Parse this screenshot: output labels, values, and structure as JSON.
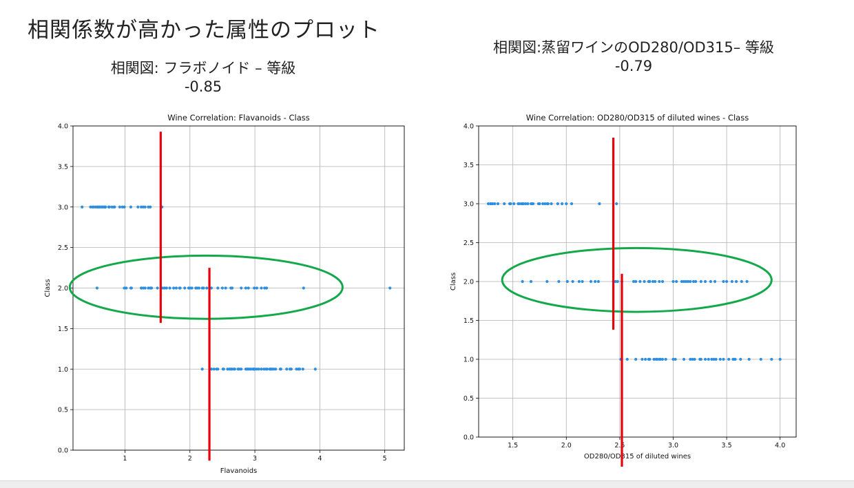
{
  "slide": {
    "title": "相関係数が高かった属性のプロット"
  },
  "captions": [
    {
      "title": "相関図: フラボノイド – 等級",
      "value": "-0.85"
    },
    {
      "title": "相関図:蒸留ワインのOD280/OD315– 等級",
      "value": "-0.79"
    }
  ],
  "colors": {
    "points": "#2e8fe0",
    "grid": "#b0b0b0",
    "marker_lines": "#e8000b",
    "ellipse": "#13a84a"
  },
  "chart_data": [
    {
      "type": "scatter",
      "title": "Wine Correlation: Flavanoids - Class",
      "xlabel": "Flavanoids",
      "ylabel": "Class",
      "xlim": [
        0.2,
        5.3
      ],
      "ylim": [
        0.0,
        4.0
      ],
      "xticks": [
        1,
        2,
        3,
        4,
        5
      ],
      "yticks": [
        0.0,
        0.5,
        1.0,
        1.5,
        2.0,
        2.5,
        3.0,
        3.5,
        4.0
      ],
      "ytick_labels": [
        "0.0",
        "0.5",
        "1.0",
        "1.5",
        "2.0",
        "2.5",
        "3.0",
        "3.5",
        "4.0"
      ],
      "grid": true,
      "series": [
        {
          "class": 3.0,
          "x": [
            0.34,
            0.47,
            0.5,
            0.52,
            0.55,
            0.57,
            0.58,
            0.6,
            0.61,
            0.63,
            0.65,
            0.66,
            0.68,
            0.69,
            0.7,
            0.7,
            0.75,
            0.76,
            0.8,
            0.83,
            0.84,
            0.92,
            0.96,
            0.99,
            1.09,
            1.2,
            1.25,
            1.28,
            1.31,
            1.36,
            1.39,
            1.57
          ]
        },
        {
          "class": 2.0,
          "x": [
            0.57,
            0.99,
            1.02,
            1.09,
            1.1,
            1.25,
            1.28,
            1.31,
            1.36,
            1.39,
            1.41,
            1.5,
            1.58,
            1.61,
            1.64,
            1.69,
            1.75,
            1.79,
            1.84,
            1.85,
            1.92,
            1.98,
            2.0,
            2.03,
            2.09,
            2.11,
            2.14,
            2.19,
            2.21,
            2.26,
            2.33,
            2.43,
            2.5,
            2.55,
            2.63,
            2.65,
            2.79,
            2.86,
            2.9,
            2.99,
            3.03,
            3.1,
            3.15,
            3.18,
            3.75,
            5.08
          ]
        },
        {
          "class": 1.0,
          "x": [
            2.19,
            2.33,
            2.37,
            2.41,
            2.43,
            2.51,
            2.52,
            2.58,
            2.61,
            2.63,
            2.65,
            2.68,
            2.69,
            2.74,
            2.76,
            2.79,
            2.86,
            2.88,
            2.9,
            2.92,
            2.94,
            2.97,
            2.98,
            2.99,
            3.0,
            3.03,
            3.06,
            3.1,
            3.14,
            3.17,
            3.19,
            3.23,
            3.24,
            3.25,
            3.27,
            3.29,
            3.32,
            3.39,
            3.4,
            3.49,
            3.54,
            3.56,
            3.64,
            3.67,
            3.69,
            3.74,
            3.93
          ]
        }
      ],
      "vlines": [
        {
          "x": 1.55,
          "y0": 1.57,
          "y1": 3.93
        },
        {
          "x": 2.3,
          "y0": -0.13,
          "y1": 2.25
        }
      ],
      "ellipse": {
        "cx": 2.25,
        "cy": 2.01,
        "rx": 2.1,
        "ry": 0.39
      }
    },
    {
      "type": "scatter",
      "title": "Wine Correlation: OD280/OD315 of diluted wines - Class",
      "xlabel": "OD280/OD315 of diluted wines",
      "ylabel": "Class",
      "xlim": [
        1.18,
        4.15
      ],
      "ylim": [
        0.0,
        4.0
      ],
      "xticks": [
        1.5,
        2.0,
        2.5,
        3.0,
        3.5,
        4.0
      ],
      "yticks": [
        0.0,
        0.5,
        1.0,
        1.5,
        2.0,
        2.5,
        3.0,
        3.5,
        4.0
      ],
      "ytick_labels": [
        "0.0",
        "0.5",
        "1.0",
        "1.5",
        "2.0",
        "2.5",
        "3.0",
        "3.5",
        "4.0"
      ],
      "grid": true,
      "series": [
        {
          "class": 3.0,
          "x": [
            1.27,
            1.29,
            1.3,
            1.31,
            1.33,
            1.36,
            1.42,
            1.47,
            1.48,
            1.51,
            1.55,
            1.56,
            1.58,
            1.59,
            1.6,
            1.62,
            1.64,
            1.67,
            1.68,
            1.69,
            1.74,
            1.75,
            1.78,
            1.8,
            1.82,
            1.83,
            1.86,
            1.92,
            1.96,
            2.0,
            2.05,
            2.31,
            2.47
          ]
        },
        {
          "class": 2.0,
          "x": [
            1.59,
            1.67,
            1.82,
            1.93,
            2.01,
            2.06,
            2.12,
            2.15,
            2.23,
            2.27,
            2.3,
            2.44,
            2.46,
            2.48,
            2.52,
            2.63,
            2.65,
            2.69,
            2.73,
            2.77,
            2.78,
            2.81,
            2.83,
            2.87,
            2.9,
            3.0,
            3.03,
            3.08,
            3.1,
            3.12,
            3.14,
            3.16,
            3.19,
            3.21,
            3.26,
            3.3,
            3.35,
            3.39,
            3.47,
            3.5,
            3.55,
            3.59,
            3.64,
            3.69
          ]
        },
        {
          "class": 1.0,
          "x": [
            2.51,
            2.57,
            2.65,
            2.71,
            2.74,
            2.77,
            2.78,
            2.82,
            2.84,
            2.85,
            2.87,
            2.88,
            2.9,
            2.93,
            3.0,
            3.02,
            3.1,
            3.16,
            3.18,
            3.2,
            3.25,
            3.26,
            3.3,
            3.33,
            3.36,
            3.38,
            3.4,
            3.44,
            3.47,
            3.52,
            3.56,
            3.57,
            3.58,
            3.63,
            3.71,
            3.82,
            3.92,
            4.0
          ]
        }
      ],
      "vlines": [
        {
          "x": 2.44,
          "y0": 1.38,
          "y1": 3.85
        },
        {
          "x": 2.52,
          "y0": -0.38,
          "y1": 2.1
        }
      ],
      "ellipse": {
        "cx": 2.66,
        "cy": 2.02,
        "rx": 1.26,
        "ry": 0.41
      }
    }
  ]
}
